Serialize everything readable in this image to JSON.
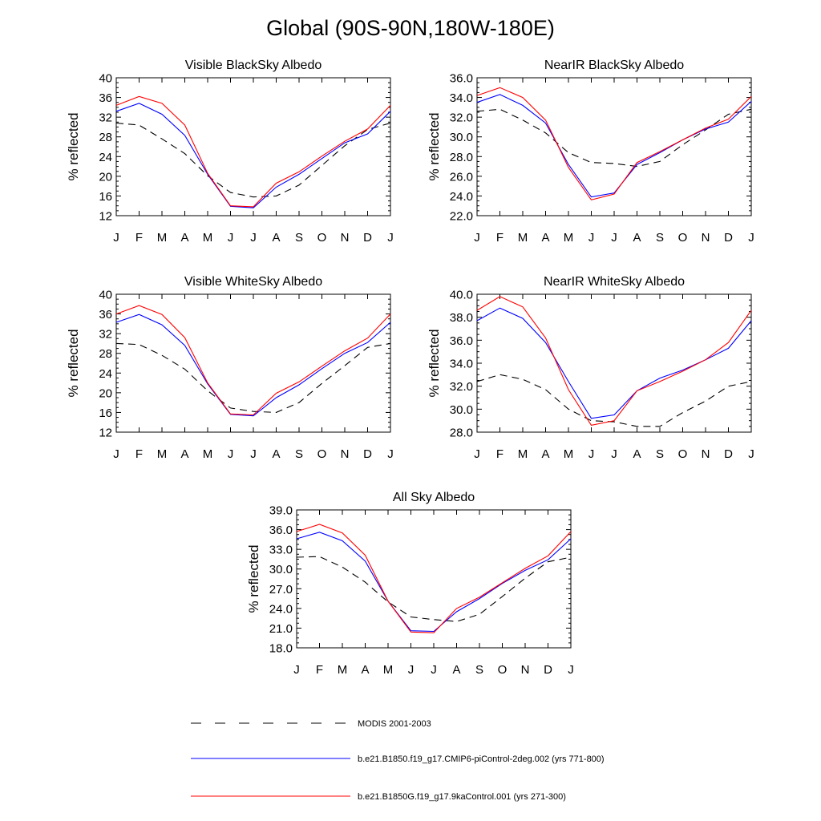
{
  "title": "Global (90S-90N,180W-180E)",
  "chart_data": [
    {
      "type": "line",
      "title": "Visible BlackSky Albedo",
      "ylabel": "% reflected",
      "categories": [
        "J",
        "F",
        "M",
        "A",
        "M",
        "J",
        "J",
        "A",
        "S",
        "O",
        "N",
        "D",
        "J"
      ],
      "ylim": [
        12,
        40
      ],
      "yticks": [
        "12",
        "16",
        "20",
        "24",
        "28",
        "32",
        "36",
        "40"
      ],
      "series": [
        {
          "name": "MODIS 2001-2003",
          "values": [
            30.8,
            30.4,
            27.6,
            24.6,
            20.1,
            16.7,
            15.8,
            16.0,
            18.2,
            22.2,
            26.2,
            29.5,
            30.8
          ]
        },
        {
          "name": "b.e21.B1850.f19_g17.CMIP6-piControl-2deg.002 (yrs 771-800)",
          "values": [
            33.2,
            34.8,
            32.6,
            28.3,
            20.4,
            13.9,
            13.6,
            17.8,
            20.4,
            23.6,
            26.8,
            28.6,
            33.2
          ]
        },
        {
          "name": "b.e21.B1850G.f19_g17.9kaControl.001 (yrs 271-300)",
          "values": [
            34.4,
            36.2,
            34.8,
            30.4,
            20.6,
            14.0,
            13.8,
            18.6,
            20.9,
            24.1,
            27.1,
            29.6,
            34.4
          ]
        }
      ]
    },
    {
      "type": "line",
      "title": "NearIR BlackSky Albedo",
      "ylabel": "% reflected",
      "categories": [
        "J",
        "F",
        "M",
        "A",
        "M",
        "J",
        "J",
        "A",
        "S",
        "O",
        "N",
        "D",
        "J"
      ],
      "ylim": [
        22,
        36
      ],
      "yticks": [
        "22.0",
        "24.0",
        "26.0",
        "28.0",
        "30.0",
        "32.0",
        "34.0",
        "36.0"
      ],
      "series": [
        {
          "name": "MODIS 2001-2003",
          "values": [
            32.6,
            32.8,
            31.7,
            30.4,
            28.4,
            27.4,
            27.3,
            27.0,
            27.5,
            29.2,
            30.7,
            32.3,
            32.8
          ]
        },
        {
          "name": "b.e21.B1850.f19_g17.CMIP6-piControl-2deg.002 (yrs 771-800)",
          "values": [
            33.5,
            34.3,
            33.2,
            31.4,
            27.2,
            23.9,
            24.3,
            27.2,
            28.4,
            29.7,
            30.8,
            31.5,
            33.6
          ]
        },
        {
          "name": "b.e21.B1850G.f19_g17.9kaControl.001 (yrs 271-300)",
          "values": [
            34.2,
            35.0,
            34.0,
            31.7,
            26.9,
            23.6,
            24.2,
            27.4,
            28.5,
            29.7,
            30.9,
            31.8,
            34.1
          ]
        }
      ]
    },
    {
      "type": "line",
      "title": "Visible WhiteSky Albedo",
      "ylabel": "% reflected",
      "categories": [
        "J",
        "F",
        "M",
        "A",
        "M",
        "J",
        "J",
        "A",
        "S",
        "O",
        "N",
        "D",
        "J"
      ],
      "ylim": [
        12,
        40
      ],
      "yticks": [
        "12",
        "16",
        "20",
        "24",
        "28",
        "32",
        "36",
        "40"
      ],
      "series": [
        {
          "name": "MODIS 2001-2003",
          "values": [
            30.0,
            29.8,
            27.6,
            24.8,
            20.4,
            16.9,
            16.2,
            16.0,
            18.0,
            21.9,
            25.5,
            29.2,
            30.0
          ]
        },
        {
          "name": "b.e21.B1850.f19_g17.CMIP6-piControl-2deg.002 (yrs 771-800)",
          "values": [
            34.3,
            35.9,
            33.8,
            29.6,
            21.8,
            15.6,
            15.3,
            19.0,
            21.6,
            24.9,
            28.0,
            30.2,
            34.3
          ]
        },
        {
          "name": "b.e21.B1850G.f19_g17.9kaControl.001 (yrs 271-300)",
          "values": [
            36.0,
            37.7,
            35.9,
            31.2,
            22.0,
            15.7,
            15.5,
            19.9,
            22.2,
            25.4,
            28.5,
            31.1,
            36.0
          ]
        }
      ]
    },
    {
      "type": "line",
      "title": "NearIR WhiteSky Albedo",
      "ylabel": "% reflected",
      "categories": [
        "J",
        "F",
        "M",
        "A",
        "M",
        "J",
        "J",
        "A",
        "S",
        "O",
        "N",
        "D",
        "J"
      ],
      "ylim": [
        28,
        40
      ],
      "yticks": [
        "28.0",
        "30.0",
        "32.0",
        "34.0",
        "36.0",
        "38.0",
        "40.0"
      ],
      "series": [
        {
          "name": "MODIS 2001-2003",
          "values": [
            32.4,
            33.0,
            32.6,
            31.7,
            30.0,
            29.0,
            28.9,
            28.5,
            28.5,
            29.7,
            30.7,
            32.0,
            32.4
          ]
        },
        {
          "name": "b.e21.B1850.f19_g17.CMIP6-piControl-2deg.002 (yrs 771-800)",
          "values": [
            37.7,
            38.8,
            37.9,
            35.8,
            32.4,
            29.2,
            29.5,
            31.6,
            32.7,
            33.4,
            34.3,
            35.3,
            37.7
          ]
        },
        {
          "name": "b.e21.B1850G.f19_g17.9kaControl.001 (yrs 271-300)",
          "values": [
            38.6,
            39.8,
            38.9,
            36.2,
            31.7,
            28.6,
            29.0,
            31.6,
            32.4,
            33.3,
            34.3,
            35.8,
            38.6
          ]
        }
      ]
    },
    {
      "type": "line",
      "title": "All Sky Albedo",
      "ylabel": "% reflected",
      "categories": [
        "J",
        "F",
        "M",
        "A",
        "M",
        "J",
        "J",
        "A",
        "S",
        "O",
        "N",
        "D",
        "J"
      ],
      "ylim": [
        18,
        39
      ],
      "yticks": [
        "18.0",
        "21.0",
        "24.0",
        "27.0",
        "30.0",
        "33.0",
        "36.0",
        "39.0"
      ],
      "series": [
        {
          "name": "MODIS 2001-2003",
          "values": [
            31.8,
            31.9,
            30.3,
            28.0,
            25.0,
            22.7,
            22.3,
            22.0,
            23.1,
            25.8,
            28.6,
            31.1,
            31.8
          ]
        },
        {
          "name": "b.e21.B1850.f19_g17.CMIP6-piControl-2deg.002 (yrs 771-800)",
          "values": [
            34.6,
            35.6,
            34.3,
            31.2,
            25.1,
            20.6,
            20.5,
            23.5,
            25.5,
            27.8,
            29.8,
            31.4,
            34.6
          ]
        },
        {
          "name": "b.e21.B1850G.f19_g17.9kaControl.001 (yrs 271-300)",
          "values": [
            35.7,
            36.8,
            35.5,
            32.1,
            25.1,
            20.4,
            20.3,
            24.0,
            25.7,
            27.9,
            30.1,
            32.0,
            35.7
          ]
        }
      ]
    }
  ],
  "legend": [
    {
      "label": "MODIS 2001-2003",
      "color": "#000000",
      "dash": true
    },
    {
      "label": "b.e21.B1850.f19_g17.CMIP6-piControl-2deg.002 (yrs 771-800)",
      "color": "#0000ff",
      "dash": false
    },
    {
      "label": "b.e21.B1850G.f19_g17.9kaControl.001 (yrs 271-300)",
      "color": "#ff0000",
      "dash": false
    }
  ],
  "colors": {
    "modis": "#000000",
    "cmip6": "#0000ff",
    "ka9": "#ff0000"
  }
}
